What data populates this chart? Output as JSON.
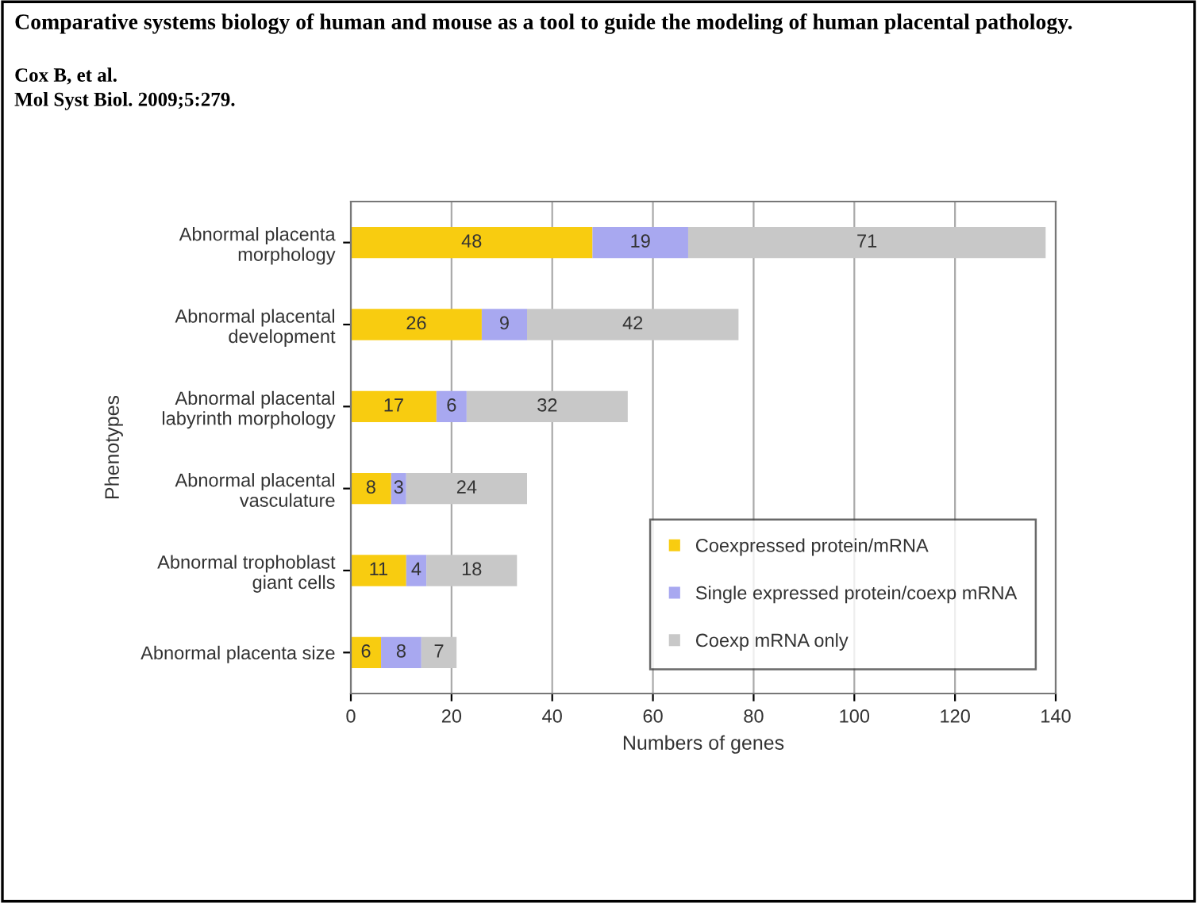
{
  "chart_data": {
    "type": "bar",
    "orientation": "horizontal",
    "stacked": true,
    "title": "Comparative systems biology of human and mouse as a tool to guide the modeling of human placental pathology.",
    "subtitle": "Cox B, et al.",
    "annotations": [
      "Mol Syst Biol. 2009;5:279."
    ],
    "ylabel": "Phenotypes",
    "xlabel": "Numbers of genes",
    "categories": [
      "Abnormal placenta\nmorphology",
      "Abnormal placental\ndevelopment",
      "Abnormal placental\nlabyrinth morphology",
      "Abnormal placental\nvasculature",
      "Abnormal trophoblast\ngiant cells",
      "Abnormal placenta size"
    ],
    "series": [
      {
        "name": "Coexpressed protein/mRNA",
        "color": "#f8cc10",
        "values": [
          48,
          26,
          17,
          8,
          11,
          6
        ]
      },
      {
        "name": "Single expressed protein/coexp mRNA",
        "color": "#a8a8f0",
        "values": [
          19,
          9,
          6,
          3,
          4,
          8
        ]
      },
      {
        "name": "Coexp mRNA only",
        "color": "#c8c8c8",
        "values": [
          71,
          42,
          32,
          24,
          18,
          7
        ]
      }
    ],
    "xlim": [
      0,
      140
    ],
    "xticks": [
      0,
      20,
      40,
      60,
      80,
      100,
      120,
      140
    ],
    "grid": "x",
    "legend": "bottom right",
    "data_labels": true
  }
}
